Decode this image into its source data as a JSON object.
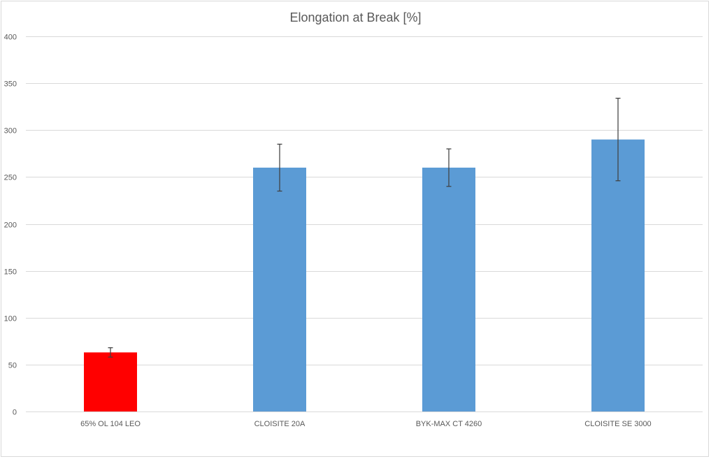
{
  "chart_data": {
    "type": "bar",
    "title": "Elongation at Break [%]",
    "xlabel": "",
    "ylabel": "",
    "categories": [
      "65% OL 104 LEO",
      "CLOISITE 20A",
      "BYK-MAX CT 4260",
      "CLOISITE SE 3000"
    ],
    "values": [
      63,
      260,
      260,
      290
    ],
    "error_plus": [
      5,
      25,
      20,
      44
    ],
    "error_minus": [
      5,
      25,
      20,
      44
    ],
    "bar_colors": [
      "#ff0000",
      "#5b9bd5",
      "#5b9bd5",
      "#5b9bd5"
    ],
    "ylim": [
      0,
      400
    ],
    "yticks": [
      0,
      50,
      100,
      150,
      200,
      250,
      300,
      350,
      400
    ],
    "grid": true,
    "legend": "none"
  },
  "colors": {
    "grid": "#d9d9d9",
    "error_bar": "#404040",
    "text": "#595959"
  }
}
